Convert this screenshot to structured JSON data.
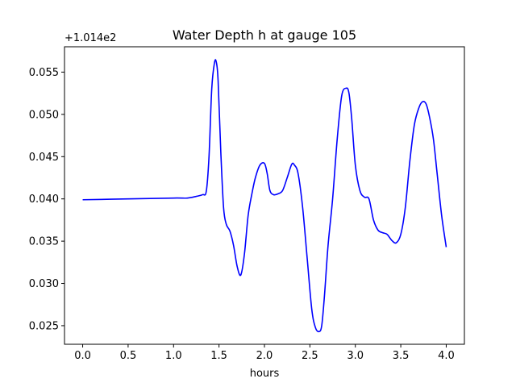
{
  "chart_data": {
    "type": "line",
    "title": "Water Depth h at gauge 105",
    "xlabel": "hours",
    "ylabel": "",
    "y_offset_label": "+1.014e2",
    "xlim": [
      -0.2,
      4.2
    ],
    "ylim": [
      0.0228,
      0.058
    ],
    "x_ticks": [
      0.0,
      0.5,
      1.0,
      1.5,
      2.0,
      2.5,
      3.0,
      3.5,
      4.0
    ],
    "x_tick_labels": [
      "0.0",
      "0.5",
      "1.0",
      "1.5",
      "2.0",
      "2.5",
      "3.0",
      "3.5",
      "4.0"
    ],
    "y_ticks": [
      0.025,
      0.03,
      0.035,
      0.04,
      0.045,
      0.05,
      0.055
    ],
    "y_tick_labels": [
      "0.025",
      "0.030",
      "0.035",
      "0.040",
      "0.045",
      "0.050",
      "0.055"
    ],
    "grid": false,
    "series": [
      {
        "color": "#0000ff",
        "x": [
          0.0,
          0.5,
          1.0,
          1.15,
          1.25,
          1.32,
          1.36,
          1.39,
          1.42,
          1.45,
          1.47,
          1.49,
          1.52,
          1.55,
          1.58,
          1.62,
          1.66,
          1.7,
          1.74,
          1.78,
          1.82,
          1.86,
          1.9,
          1.95,
          2.0,
          2.03,
          2.06,
          2.1,
          2.15,
          2.2,
          2.25,
          2.3,
          2.33,
          2.37,
          2.42,
          2.47,
          2.52,
          2.56,
          2.6,
          2.63,
          2.66,
          2.7,
          2.75,
          2.8,
          2.85,
          2.9,
          2.93,
          2.96,
          3.0,
          3.05,
          3.1,
          3.15,
          3.2,
          3.25,
          3.3,
          3.35,
          3.4,
          3.45,
          3.5,
          3.55,
          3.6,
          3.65,
          3.7,
          3.74,
          3.78,
          3.82,
          3.86,
          3.9,
          3.95,
          4.0
        ],
        "y": [
          0.0399,
          0.04,
          0.0401,
          0.0401,
          0.0403,
          0.0405,
          0.0409,
          0.045,
          0.053,
          0.0561,
          0.0562,
          0.054,
          0.0455,
          0.039,
          0.037,
          0.0362,
          0.0345,
          0.032,
          0.031,
          0.0335,
          0.038,
          0.0405,
          0.0425,
          0.044,
          0.0442,
          0.043,
          0.041,
          0.0405,
          0.0406,
          0.041,
          0.0425,
          0.0441,
          0.044,
          0.043,
          0.039,
          0.033,
          0.027,
          0.0248,
          0.0243,
          0.025,
          0.0285,
          0.0345,
          0.04,
          0.047,
          0.0522,
          0.0531,
          0.0525,
          0.0495,
          0.044,
          0.041,
          0.0402,
          0.04,
          0.0375,
          0.0363,
          0.036,
          0.0358,
          0.0351,
          0.0348,
          0.0358,
          0.039,
          0.0445,
          0.0488,
          0.0508,
          0.0515,
          0.0512,
          0.0495,
          0.047,
          0.043,
          0.038,
          0.0343
        ]
      }
    ]
  }
}
